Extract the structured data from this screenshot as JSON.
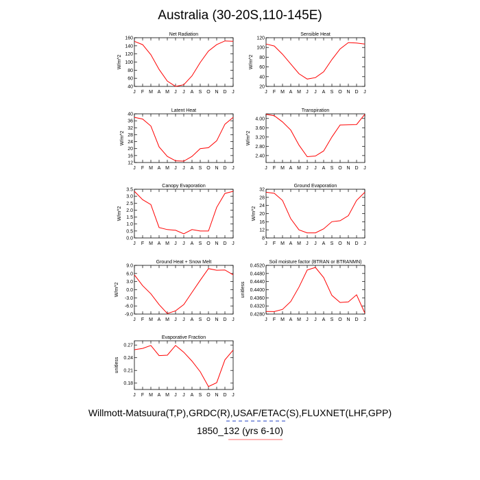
{
  "title": "Australia (30-20S,110-145E)",
  "footer": {
    "line1": "Willmott-Matsuura(T,P),GRDC(R),USAF/ETAC(S),FLUXNET(LHF,GPP)",
    "line2": "1850_132 (yrs 6-10)",
    "legend_colors": [
      "#1f3fbf",
      "#ff6a6a"
    ]
  },
  "line_color": "#ff0000",
  "chart_data": [
    {
      "type": "line",
      "title": "Net Radiation",
      "ylabel": "W/m^2",
      "categories": [
        "J",
        "F",
        "M",
        "A",
        "M",
        "J",
        "J",
        "A",
        "S",
        "O",
        "N",
        "D",
        "J"
      ],
      "ylim": [
        40,
        160
      ],
      "yticks": [
        40,
        60,
        80,
        100,
        120,
        140,
        160
      ],
      "ytick_labels": [
        "40",
        "60",
        "80",
        "100",
        "120",
        "140",
        "160"
      ],
      "values": [
        151,
        143,
        118,
        82,
        53,
        40,
        44,
        66,
        99,
        127,
        143,
        152,
        151
      ]
    },
    {
      "type": "line",
      "title": "Sensible Heat",
      "ylabel": "W/m^2",
      "categories": [
        "J",
        "F",
        "M",
        "A",
        "M",
        "J",
        "J",
        "A",
        "S",
        "O",
        "N",
        "D",
        "J"
      ],
      "ylim": [
        20,
        120
      ],
      "yticks": [
        20,
        40,
        60,
        80,
        100,
        120
      ],
      "ytick_labels": [
        "20",
        "40",
        "60",
        "80",
        "100",
        "120"
      ],
      "values": [
        107,
        103,
        86,
        66,
        46,
        35,
        38,
        50,
        75,
        97,
        110,
        109,
        107
      ]
    },
    {
      "type": "line",
      "title": "Latent Heat",
      "ylabel": "W/m^2",
      "categories": [
        "J",
        "F",
        "M",
        "A",
        "M",
        "J",
        "J",
        "A",
        "S",
        "O",
        "N",
        "D",
        "J"
      ],
      "ylim": [
        12,
        40
      ],
      "yticks": [
        12,
        16,
        20,
        24,
        28,
        32,
        36,
        40
      ],
      "ytick_labels": [
        "12",
        "16",
        "20",
        "24",
        "28",
        "32",
        "36",
        "40"
      ],
      "values": [
        38,
        37,
        33,
        21,
        15.5,
        13,
        12.8,
        15.5,
        20,
        20.5,
        24.5,
        34,
        38
      ]
    },
    {
      "type": "line",
      "title": "Transpiration",
      "ylabel": "W/m^2",
      "categories": [
        "J",
        "F",
        "M",
        "A",
        "M",
        "J",
        "J",
        "A",
        "S",
        "O",
        "N",
        "D",
        "J"
      ],
      "ylim": [
        2.1,
        4.2
      ],
      "yticks": [
        2.4,
        2.8,
        3.2,
        3.6,
        4.0
      ],
      "ytick_labels": [
        "2.40",
        "2.80",
        "3.20",
        "3.60",
        "4.00"
      ],
      "values": [
        4.18,
        4.12,
        3.85,
        3.5,
        2.85,
        2.35,
        2.38,
        2.6,
        3.2,
        3.72,
        3.73,
        3.74,
        4.18
      ]
    },
    {
      "type": "line",
      "title": "Canopy Evaporation",
      "ylabel": "W/m^2",
      "categories": [
        "J",
        "F",
        "M",
        "A",
        "M",
        "J",
        "J",
        "A",
        "S",
        "O",
        "N",
        "D",
        "J"
      ],
      "ylim": [
        0.0,
        3.5
      ],
      "yticks": [
        0.0,
        0.5,
        1.0,
        1.5,
        2.0,
        2.5,
        3.0,
        3.5
      ],
      "ytick_labels": [
        "0.0",
        "0.5",
        "1.0",
        "1.5",
        "2.0",
        "2.5",
        "3.0",
        "3.5"
      ],
      "values": [
        3.35,
        2.75,
        2.4,
        0.75,
        0.6,
        0.55,
        0.3,
        0.6,
        0.5,
        0.5,
        2.2,
        3.2,
        3.35
      ]
    },
    {
      "type": "line",
      "title": "Ground Evaporation",
      "ylabel": "W/m^2",
      "categories": [
        "J",
        "F",
        "M",
        "A",
        "M",
        "J",
        "J",
        "A",
        "S",
        "O",
        "N",
        "D",
        "J"
      ],
      "ylim": [
        8,
        32
      ],
      "yticks": [
        8,
        12,
        16,
        20,
        24,
        28,
        32
      ],
      "ytick_labels": [
        "8",
        "12",
        "16",
        "20",
        "24",
        "28",
        "32"
      ],
      "values": [
        30.5,
        30,
        26.5,
        17.5,
        12,
        10.5,
        10.5,
        12.5,
        16,
        16.5,
        19,
        26.5,
        30.5
      ]
    },
    {
      "type": "line",
      "title": "Ground Heat + Snow Melt",
      "ylabel": "W/m^2",
      "categories": [
        "J",
        "F",
        "M",
        "A",
        "M",
        "J",
        "J",
        "A",
        "S",
        "O",
        "N",
        "D",
        "J"
      ],
      "ylim": [
        -9.0,
        9.0
      ],
      "yticks": [
        -9.0,
        -6.0,
        -3.0,
        0.0,
        3.0,
        6.0,
        9.0
      ],
      "ytick_labels": [
        "-9.0",
        "-6.0",
        "-3.0",
        "0.0",
        "3.0",
        "6.0",
        "9.0"
      ],
      "values": [
        5.5,
        1.5,
        -1.5,
        -5.5,
        -8.8,
        -7.8,
        -5.5,
        -1.0,
        3.5,
        7.8,
        7.2,
        7.3,
        5.5
      ]
    },
    {
      "type": "line",
      "title": "Soil moisture factor (BTRAN or BTRANMN)",
      "ylabel": "unitless",
      "categories": [
        "J",
        "F",
        "M",
        "A",
        "M",
        "J",
        "J",
        "A",
        "S",
        "O",
        "N",
        "D",
        "J"
      ],
      "ylim": [
        0.428,
        0.452
      ],
      "yticks": [
        0.428,
        0.432,
        0.436,
        0.44,
        0.444,
        0.448,
        0.452
      ],
      "ytick_labels": [
        "0.4280",
        "0.4320",
        "0.4360",
        "0.4400",
        "0.4440",
        "0.4480",
        "0.4520"
      ],
      "values": [
        0.4293,
        0.4292,
        0.4303,
        0.4342,
        0.4413,
        0.4497,
        0.451,
        0.446,
        0.4372,
        0.4337,
        0.434,
        0.4375,
        0.4285
      ]
    },
    {
      "type": "line",
      "title": "Evaporative Fraction",
      "ylabel": "unitless",
      "categories": [
        "J",
        "F",
        "M",
        "A",
        "M",
        "J",
        "J",
        "A",
        "S",
        "O",
        "N",
        "D",
        "J"
      ],
      "ylim": [
        0.165,
        0.28
      ],
      "yticks": [
        0.18,
        0.21,
        0.24,
        0.27
      ],
      "ytick_labels": [
        "0.18",
        "0.21",
        "0.24",
        "0.27"
      ],
      "values": [
        0.259,
        0.262,
        0.269,
        0.245,
        0.246,
        0.269,
        0.253,
        0.232,
        0.207,
        0.172,
        0.181,
        0.235,
        0.258
      ]
    }
  ]
}
